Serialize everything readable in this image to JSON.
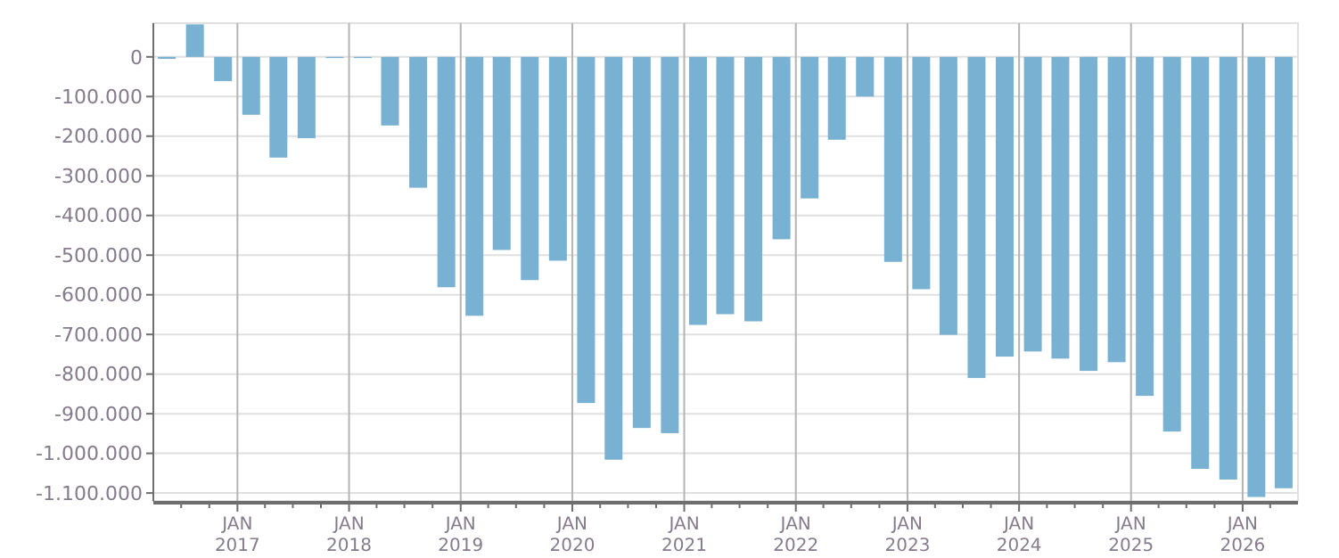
{
  "chart_data": {
    "type": "bar",
    "x": [
      "2016-05-15",
      "2016-08-15",
      "2016-11-15",
      "2017-02-15",
      "2017-05-15",
      "2017-08-15",
      "2017-11-15",
      "2018-02-15",
      "2018-05-15",
      "2018-08-15",
      "2018-11-15",
      "2019-02-15",
      "2019-05-15",
      "2019-08-15",
      "2019-11-15",
      "2020-02-15",
      "2020-05-15",
      "2020-08-15",
      "2020-11-15",
      "2021-02-15",
      "2021-05-15",
      "2021-08-15",
      "2021-11-15",
      "2022-02-15",
      "2022-05-15",
      "2022-08-15",
      "2022-11-15",
      "2023-02-15",
      "2023-05-15",
      "2023-08-15",
      "2023-11-15",
      "2024-02-15",
      "2024-05-15",
      "2024-08-15",
      "2024-11-15",
      "2025-02-15",
      "2025-05-15",
      "2025-08-15",
      "2025-11-15",
      "2026-02-15",
      "2026-05-15"
    ],
    "values": [
      -5000,
      82000,
      -61000,
      -146000,
      -254000,
      -205000,
      -3000,
      -3000,
      -173000,
      -330000,
      -581000,
      -653000,
      -487000,
      -563000,
      -514000,
      -873000,
      -1016000,
      -936000,
      -949000,
      -676000,
      -649000,
      -667000,
      -460000,
      -357000,
      -209000,
      -100000,
      -517000,
      -586000,
      -701000,
      -810000,
      -756000,
      -743000,
      -761000,
      -792000,
      -770000,
      -855000,
      -945000,
      -1039000,
      -1066000,
      -1110000,
      -1088000
    ],
    "color": "#78b1d2",
    "xlim": [
      "2016-04-01",
      "2026-07-01"
    ],
    "xticks": [
      {
        "value": "2016-07-01",
        "label": null
      },
      {
        "value": "2016-10-01",
        "label": null
      },
      {
        "value": "2017-01-01",
        "label": "JAN\n2017"
      },
      {
        "value": "2017-04-01",
        "label": null
      },
      {
        "value": "2017-07-01",
        "label": null
      },
      {
        "value": "2017-10-01",
        "label": null
      },
      {
        "value": "2018-01-01",
        "label": "JAN\n2018"
      },
      {
        "value": "2018-04-01",
        "label": null
      },
      {
        "value": "2018-07-01",
        "label": null
      },
      {
        "value": "2018-10-01",
        "label": null
      },
      {
        "value": "2019-01-01",
        "label": "JAN\n2019"
      },
      {
        "value": "2019-04-01",
        "label": null
      },
      {
        "value": "2019-07-01",
        "label": null
      },
      {
        "value": "2019-10-01",
        "label": null
      },
      {
        "value": "2020-01-01",
        "label": "JAN\n2020"
      },
      {
        "value": "2020-04-01",
        "label": null
      },
      {
        "value": "2020-07-01",
        "label": null
      },
      {
        "value": "2020-10-01",
        "label": null
      },
      {
        "value": "2021-01-01",
        "label": "JAN\n2021"
      },
      {
        "value": "2021-04-01",
        "label": null
      },
      {
        "value": "2021-07-01",
        "label": null
      },
      {
        "value": "2021-10-01",
        "label": null
      },
      {
        "value": "2022-01-01",
        "label": "JAN\n2022"
      },
      {
        "value": "2022-04-01",
        "label": null
      },
      {
        "value": "2022-07-01",
        "label": null
      },
      {
        "value": "2022-10-01",
        "label": null
      },
      {
        "value": "2023-01-01",
        "label": "JAN\n2023"
      },
      {
        "value": "2023-04-01",
        "label": null
      },
      {
        "value": "2023-07-01",
        "label": null
      },
      {
        "value": "2023-10-01",
        "label": null
      },
      {
        "value": "2024-01-01",
        "label": "JAN\n2024"
      },
      {
        "value": "2024-04-01",
        "label": null
      },
      {
        "value": "2024-07-01",
        "label": null
      },
      {
        "value": "2024-10-01",
        "label": null
      },
      {
        "value": "2025-01-01",
        "label": "JAN\n2025"
      },
      {
        "value": "2025-04-01",
        "label": null
      },
      {
        "value": "2025-07-01",
        "label": null
      },
      {
        "value": "2025-10-01",
        "label": null
      },
      {
        "value": "2026-01-01",
        "label": "JAN\n2026"
      },
      {
        "value": "2026-04-01",
        "label": null
      }
    ],
    "ylim": [
      -1120000,
      85000
    ],
    "yticks": [
      {
        "value": 0,
        "label": "0"
      },
      {
        "value": -100000,
        "label": "-100.000"
      },
      {
        "value": -200000,
        "label": "-200.000"
      },
      {
        "value": -300000,
        "label": "-300.000"
      },
      {
        "value": -400000,
        "label": "-400.000"
      },
      {
        "value": -500000,
        "label": "-500.000"
      },
      {
        "value": -600000,
        "label": "-600.000"
      },
      {
        "value": -700000,
        "label": "-700.000"
      },
      {
        "value": -800000,
        "label": "-800.000"
      },
      {
        "value": -900000,
        "label": "-900.000"
      },
      {
        "value": -1000000,
        "label": "-1.000.000"
      },
      {
        "value": -1100000,
        "label": "-1.100.000"
      }
    ],
    "grid": true
  }
}
